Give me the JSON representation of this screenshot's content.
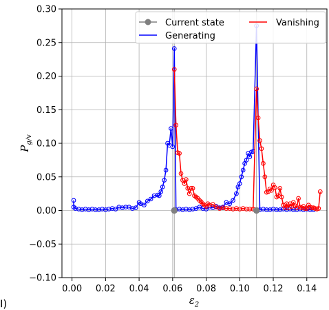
{
  "chart_data": {
    "type": "line",
    "xlabel": "ε",
    "xlabel_sub": "2",
    "ylabel": "P",
    "ylabel_sub": "g/v",
    "xlim": [
      -0.006,
      0.152
    ],
    "ylim": [
      -0.1,
      0.3
    ],
    "xticks": [
      0.0,
      0.02,
      0.04,
      0.06,
      0.08,
      0.1,
      0.12,
      0.14
    ],
    "xtick_labels": [
      "0.00",
      "0.02",
      "0.04",
      "0.06",
      "0.08",
      "0.10",
      "0.12",
      "0.14"
    ],
    "yticks": [
      -0.1,
      -0.05,
      0.0,
      0.05,
      0.1,
      0.15,
      0.2,
      0.25,
      0.3
    ],
    "ytick_labels": [
      "−0.10",
      "−0.05",
      "0.00",
      "0.05",
      "0.10",
      "0.15",
      "0.20",
      "0.25",
      "0.30"
    ],
    "grid": true,
    "legend_placement": "top-right",
    "panel_letter": "I)",
    "series": [
      {
        "name": "Generating",
        "color": "#0000ff",
        "marker": "open-circle",
        "points": [
          [
            0.001,
            0.015
          ],
          [
            0.001,
            0.005
          ],
          [
            0.002,
            0.003
          ],
          [
            0.004,
            0.002
          ],
          [
            0.006,
            0.001
          ],
          [
            0.008,
            0.002
          ],
          [
            0.01,
            0.001
          ],
          [
            0.012,
            0.002
          ],
          [
            0.014,
            0.001
          ],
          [
            0.016,
            0.001
          ],
          [
            0.018,
            0.002
          ],
          [
            0.02,
            0.001
          ],
          [
            0.022,
            0.002
          ],
          [
            0.024,
            0.003
          ],
          [
            0.026,
            0.002
          ],
          [
            0.028,
            0.005
          ],
          [
            0.03,
            0.004
          ],
          [
            0.032,
            0.005
          ],
          [
            0.034,
            0.005
          ],
          [
            0.036,
            0.003
          ],
          [
            0.038,
            0.004
          ],
          [
            0.04,
            0.012
          ],
          [
            0.041,
            0.01
          ],
          [
            0.043,
            0.008
          ],
          [
            0.045,
            0.014
          ],
          [
            0.047,
            0.017
          ],
          [
            0.049,
            0.022
          ],
          [
            0.051,
            0.023
          ],
          [
            0.052,
            0.022
          ],
          [
            0.053,
            0.028
          ],
          [
            0.054,
            0.035
          ],
          [
            0.055,
            0.045
          ],
          [
            0.056,
            0.06
          ],
          [
            0.057,
            0.1
          ],
          [
            0.058,
            0.097
          ],
          [
            0.059,
            0.122
          ],
          [
            0.06,
            0.095
          ],
          [
            0.061,
            0.241
          ],
          [
            0.062,
            0.001
          ],
          [
            0.064,
            0.002
          ],
          [
            0.066,
            0.001
          ],
          [
            0.068,
            0.002
          ],
          [
            0.07,
            0.001
          ],
          [
            0.072,
            0.002
          ],
          [
            0.074,
            0.003
          ],
          [
            0.076,
            0.005
          ],
          [
            0.078,
            0.003
          ],
          [
            0.08,
            0.002
          ],
          [
            0.082,
            0.005
          ],
          [
            0.084,
            0.004
          ],
          [
            0.086,
            0.006
          ],
          [
            0.088,
            0.004
          ],
          [
            0.09,
            0.005
          ],
          [
            0.092,
            0.012
          ],
          [
            0.094,
            0.01
          ],
          [
            0.096,
            0.015
          ],
          [
            0.098,
            0.025
          ],
          [
            0.099,
            0.035
          ],
          [
            0.1,
            0.04
          ],
          [
            0.101,
            0.05
          ],
          [
            0.102,
            0.06
          ],
          [
            0.103,
            0.07
          ],
          [
            0.104,
            0.075
          ],
          [
            0.105,
            0.085
          ],
          [
            0.106,
            0.08
          ],
          [
            0.107,
            0.087
          ],
          [
            0.108,
            0.088
          ],
          [
            0.11,
            0.275
          ],
          [
            0.112,
            0.001
          ],
          [
            0.114,
            0.002
          ],
          [
            0.116,
            0.001
          ],
          [
            0.118,
            0.001
          ],
          [
            0.12,
            0.002
          ],
          [
            0.122,
            0.001
          ],
          [
            0.124,
            0.001
          ],
          [
            0.126,
            0.002
          ],
          [
            0.128,
            0.001
          ],
          [
            0.13,
            0.002
          ],
          [
            0.132,
            0.001
          ],
          [
            0.134,
            0.001
          ],
          [
            0.136,
            0.002
          ],
          [
            0.138,
            0.001
          ],
          [
            0.14,
            0.002
          ],
          [
            0.142,
            0.001
          ],
          [
            0.144,
            0.001
          ]
        ]
      },
      {
        "name": "Vanishing",
        "color": "#ff0000",
        "marker": "open-circle",
        "points": [
          [
            0.061,
            0.21
          ],
          [
            0.062,
            0.127
          ],
          [
            0.063,
            0.086
          ],
          [
            0.064,
            0.085
          ],
          [
            0.065,
            0.055
          ],
          [
            0.066,
            0.045
          ],
          [
            0.067,
            0.04
          ],
          [
            0.068,
            0.046
          ],
          [
            0.069,
            0.033
          ],
          [
            0.07,
            0.025
          ],
          [
            0.071,
            0.033
          ],
          [
            0.072,
            0.033
          ],
          [
            0.073,
            0.022
          ],
          [
            0.074,
            0.02
          ],
          [
            0.075,
            0.018
          ],
          [
            0.076,
            0.015
          ],
          [
            0.077,
            0.013
          ],
          [
            0.078,
            0.01
          ],
          [
            0.079,
            0.008
          ],
          [
            0.08,
            0.006
          ],
          [
            0.081,
            0.01
          ],
          [
            0.082,
            0.008
          ],
          [
            0.084,
            0.009
          ],
          [
            0.086,
            0.005
          ],
          [
            0.088,
            0.003
          ],
          [
            0.09,
            0.004
          ],
          [
            0.092,
            0.003
          ],
          [
            0.094,
            0.003
          ],
          [
            0.096,
            0.002
          ],
          [
            0.098,
            0.003
          ],
          [
            0.1,
            0.002
          ],
          [
            0.102,
            0.003
          ],
          [
            0.104,
            0.002
          ],
          [
            0.106,
            0.002
          ],
          [
            0.108,
            0.002
          ],
          [
            0.11,
            0.181
          ],
          [
            0.111,
            0.138
          ],
          [
            0.112,
            0.104
          ],
          [
            0.113,
            0.092
          ],
          [
            0.114,
            0.07
          ],
          [
            0.115,
            0.05
          ],
          [
            0.116,
            0.027
          ],
          [
            0.117,
            0.028
          ],
          [
            0.118,
            0.032
          ],
          [
            0.119,
            0.03
          ],
          [
            0.12,
            0.038
          ],
          [
            0.121,
            0.034
          ],
          [
            0.122,
            0.02
          ],
          [
            0.123,
            0.022
          ],
          [
            0.124,
            0.033
          ],
          [
            0.125,
            0.02
          ],
          [
            0.126,
            0.008
          ],
          [
            0.127,
            0.004
          ],
          [
            0.128,
            0.01
          ],
          [
            0.129,
            0.004
          ],
          [
            0.13,
            0.01
          ],
          [
            0.131,
            0.006
          ],
          [
            0.132,
            0.012
          ],
          [
            0.133,
            0.007
          ],
          [
            0.134,
            0.004
          ],
          [
            0.135,
            0.018
          ],
          [
            0.136,
            0.005
          ],
          [
            0.137,
            0.004
          ],
          [
            0.138,
            0.006
          ],
          [
            0.139,
            0.003
          ],
          [
            0.14,
            0.003
          ],
          [
            0.141,
            0.008
          ],
          [
            0.142,
            0.005
          ],
          [
            0.143,
            0.004
          ],
          [
            0.144,
            0.004
          ],
          [
            0.145,
            0.003
          ],
          [
            0.146,
            0.002
          ],
          [
            0.147,
            0.003
          ],
          [
            0.148,
            0.028
          ]
        ]
      },
      {
        "name": "Current state",
        "color": "#808080",
        "marker": "filled-circle",
        "points": [
          [
            0.061,
            0.0
          ],
          [
            0.11,
            0.0
          ]
        ],
        "vlines": [
          0.061,
          0.11
        ]
      }
    ]
  },
  "colors": {
    "grid": "#b0b0b0",
    "axis": "#000000",
    "background": "#ffffff"
  }
}
